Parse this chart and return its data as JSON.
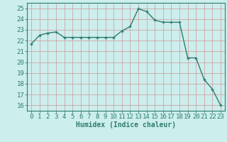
{
  "x": [
    0,
    1,
    2,
    3,
    4,
    5,
    6,
    7,
    8,
    9,
    10,
    11,
    12,
    13,
    14,
    15,
    16,
    17,
    18,
    19,
    20,
    21,
    22,
    23
  ],
  "y": [
    21.7,
    22.5,
    22.7,
    22.8,
    22.3,
    22.3,
    22.3,
    22.3,
    22.3,
    22.3,
    22.3,
    22.9,
    23.3,
    24.95,
    24.7,
    23.9,
    23.7,
    23.7,
    23.7,
    20.4,
    20.4,
    18.4,
    17.5,
    16.0
  ],
  "line_color": "#2e7d6e",
  "marker": "+",
  "markersize": 3,
  "linewidth": 1.0,
  "xlabel": "Humidex (Indice chaleur)",
  "ylabel_ticks": [
    16,
    17,
    18,
    19,
    20,
    21,
    22,
    23,
    24,
    25
  ],
  "xlim": [
    -0.5,
    23.5
  ],
  "ylim": [
    15.5,
    25.5
  ],
  "bg_color": "#cceeed",
  "grid_color": "#cc9999",
  "spine_color": "#2e7d6e",
  "xlabel_fontsize": 7,
  "tick_fontsize": 6.5,
  "fig_bg": "#cceeed"
}
